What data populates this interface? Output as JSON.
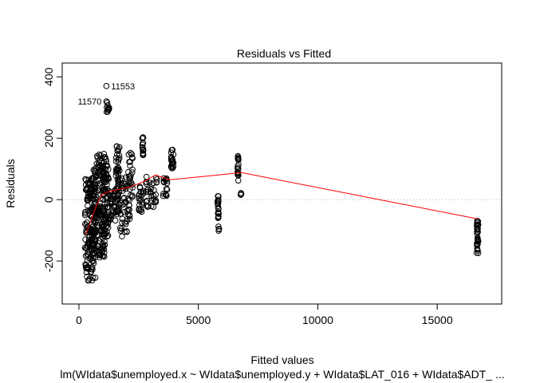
{
  "chart_data": {
    "type": "scatter",
    "title": "Residuals vs Fitted",
    "xlabel": "Fitted values",
    "ylabel": "Residuals",
    "subtitle": "lm(WIdata$unemployed.x ~ WIdata$unemployed.y + WIdata$LAT_016 + WIdata$ADT_ ...",
    "xlim": [
      -700,
      17700
    ],
    "ylim": [
      -340,
      445
    ],
    "xticks": [
      0,
      5000,
      10000,
      15000
    ],
    "yticks": [
      -200,
      0,
      200,
      400
    ],
    "reference_line": {
      "y": 0,
      "style": "dotted"
    },
    "annotations": [
      {
        "label": "11553",
        "x": 1150,
        "y": 370
      },
      {
        "label": "11570",
        "x": 1150,
        "y": 320
      }
    ],
    "clusters": [
      {
        "x_min": 250,
        "x_max": 700,
        "y_min": -265,
        "y_max": 70,
        "n": 170
      },
      {
        "x_min": 600,
        "x_max": 1100,
        "y_min": -190,
        "y_max": 150,
        "n": 160
      },
      {
        "x_min": 1000,
        "x_max": 1250,
        "y_min": -120,
        "y_max": 140,
        "n": 70
      },
      {
        "x_min": 1150,
        "x_max": 1270,
        "y_min": 285,
        "y_max": 320,
        "n": 10
      },
      {
        "x_min": 1250,
        "x_max": 1650,
        "y_min": -70,
        "y_max": 40,
        "n": 40
      },
      {
        "x_min": 1550,
        "x_max": 1700,
        "y_min": -50,
        "y_max": 180,
        "n": 45
      },
      {
        "x_min": 1700,
        "x_max": 2150,
        "y_min": -120,
        "y_max": 80,
        "n": 50
      },
      {
        "x_min": 2050,
        "x_max": 2250,
        "y_min": 0,
        "y_max": 170,
        "n": 25
      },
      {
        "x_min": 2500,
        "x_max": 2700,
        "y_min": -40,
        "y_max": 45,
        "n": 20
      },
      {
        "x_min": 2650,
        "x_max": 2700,
        "y_min": 145,
        "y_max": 205,
        "n": 15
      },
      {
        "x_min": 2800,
        "x_max": 3300,
        "y_min": -25,
        "y_max": 80,
        "n": 35
      },
      {
        "x_min": 3500,
        "x_max": 3700,
        "y_min": 10,
        "y_max": 70,
        "n": 15
      },
      {
        "x_min": 3850,
        "x_max": 3960,
        "y_min": 95,
        "y_max": 165,
        "n": 20
      },
      {
        "x_min": 5800,
        "x_max": 5850,
        "y_min": -60,
        "y_max": 20,
        "n": 20
      },
      {
        "x_min": 5820,
        "x_max": 5880,
        "y_min": -115,
        "y_max": -85,
        "n": 4
      },
      {
        "x_min": 6640,
        "x_max": 6680,
        "y_min": 60,
        "y_max": 155,
        "n": 20
      },
      {
        "x_min": 6750,
        "x_max": 6800,
        "y_min": 15,
        "y_max": 25,
        "n": 3
      },
      {
        "x_min": 16650,
        "x_max": 16720,
        "y_min": -175,
        "y_max": -60,
        "n": 35
      }
    ],
    "smooth_line": {
      "color": "#ff0000",
      "x": [
        280,
        450,
        700,
        950,
        1200,
        1600,
        2100,
        2700,
        3200,
        3800,
        4500,
        5800,
        6800,
        16700
      ],
      "y": [
        -115,
        -80,
        -25,
        15,
        25,
        32,
        40,
        58,
        80,
        65,
        70,
        80,
        88,
        -63
      ]
    }
  }
}
